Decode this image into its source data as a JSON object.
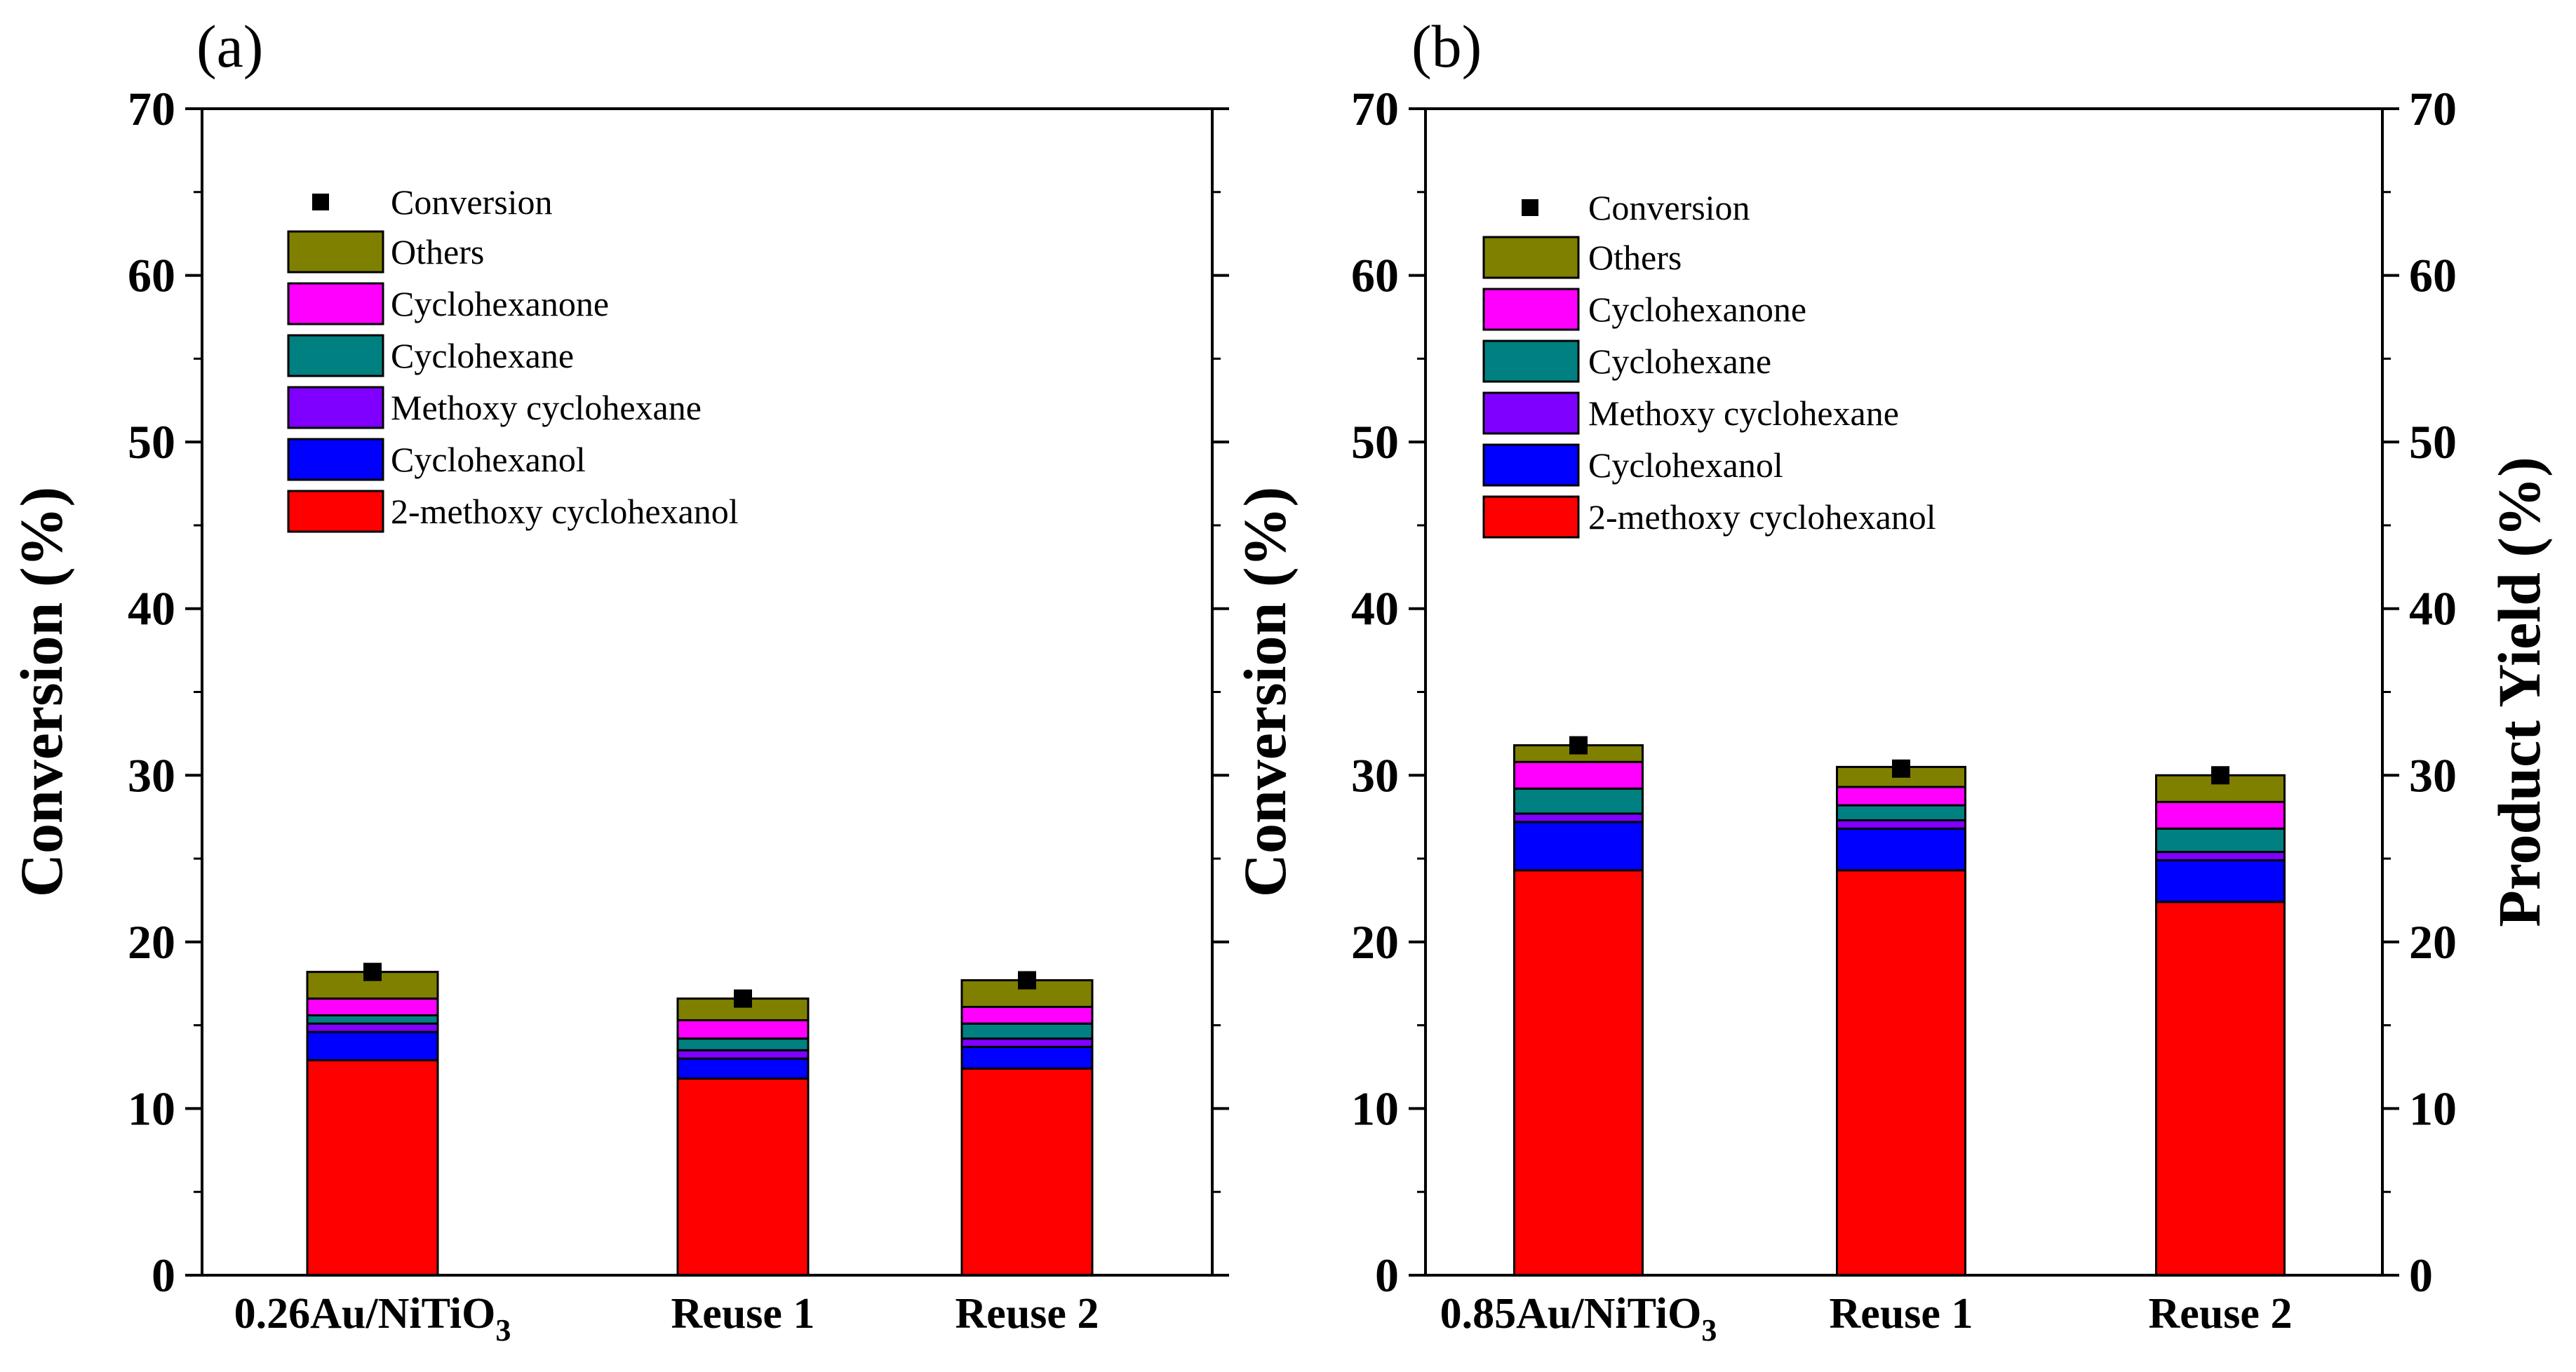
{
  "chart_data": [
    {
      "type": "bar",
      "stacked": true,
      "panel_label": "(a)",
      "categories": [
        "0.26Au/NiTiO",
        "Reuse 1",
        "Reuse 2"
      ],
      "category_subscripts": [
        "3",
        "",
        ""
      ],
      "ylabel": "Conversion (%)",
      "ylim": [
        0,
        70
      ],
      "yticks": [
        "0",
        "10",
        "20",
        "30",
        "40",
        "50",
        "60",
        "70"
      ],
      "series": [
        {
          "name": "2-methoxy cyclohexanol",
          "color": "#ff0000",
          "values": [
            12.9,
            11.8,
            12.4
          ]
        },
        {
          "name": "Cyclohexanol",
          "color": "#0000ff",
          "values": [
            1.7,
            1.2,
            1.3
          ]
        },
        {
          "name": "Methoxy cyclohexane",
          "color": "#8000ff",
          "values": [
            0.5,
            0.5,
            0.5
          ]
        },
        {
          "name": "Cyclohexane",
          "color": "#008080",
          "values": [
            0.5,
            0.7,
            0.9
          ]
        },
        {
          "name": "Cyclohexanone",
          "color": "#ff00ff",
          "values": [
            1.0,
            1.1,
            1.0
          ]
        },
        {
          "name": "Others",
          "color": "#808000",
          "values": [
            1.6,
            1.3,
            1.6
          ]
        }
      ],
      "conversion": {
        "name": "Conversion",
        "values": [
          18.2,
          16.6,
          17.7
        ]
      },
      "legend_position": "upper-left"
    },
    {
      "type": "bar",
      "stacked": true,
      "panel_label": "(b)",
      "categories": [
        "0.85Au/NiTiO",
        "Reuse 1",
        "Reuse 2"
      ],
      "category_subscripts": [
        "3",
        "",
        ""
      ],
      "ylabel": "Conversion (%)",
      "y2label": "Product Yield (%)",
      "ylim": [
        0,
        70
      ],
      "yticks": [
        "0",
        "10",
        "20",
        "30",
        "40",
        "50",
        "60",
        "70"
      ],
      "series": [
        {
          "name": "2-methoxy cyclohexanol",
          "color": "#ff0000",
          "values": [
            24.3,
            24.3,
            22.4
          ]
        },
        {
          "name": "Cyclohexanol",
          "color": "#0000ff",
          "values": [
            2.9,
            2.5,
            2.5
          ]
        },
        {
          "name": "Methoxy cyclohexane",
          "color": "#8000ff",
          "values": [
            0.5,
            0.5,
            0.5
          ]
        },
        {
          "name": "Cyclohexane",
          "color": "#008080",
          "values": [
            1.5,
            0.9,
            1.4
          ]
        },
        {
          "name": "Cyclohexanone",
          "color": "#ff00ff",
          "values": [
            1.6,
            1.1,
            1.6
          ]
        },
        {
          "name": "Others",
          "color": "#808000",
          "values": [
            1.0,
            1.2,
            1.6
          ]
        }
      ],
      "conversion": {
        "name": "Conversion",
        "values": [
          31.8,
          30.4,
          30.0
        ]
      },
      "legend_position": "upper-left"
    }
  ]
}
